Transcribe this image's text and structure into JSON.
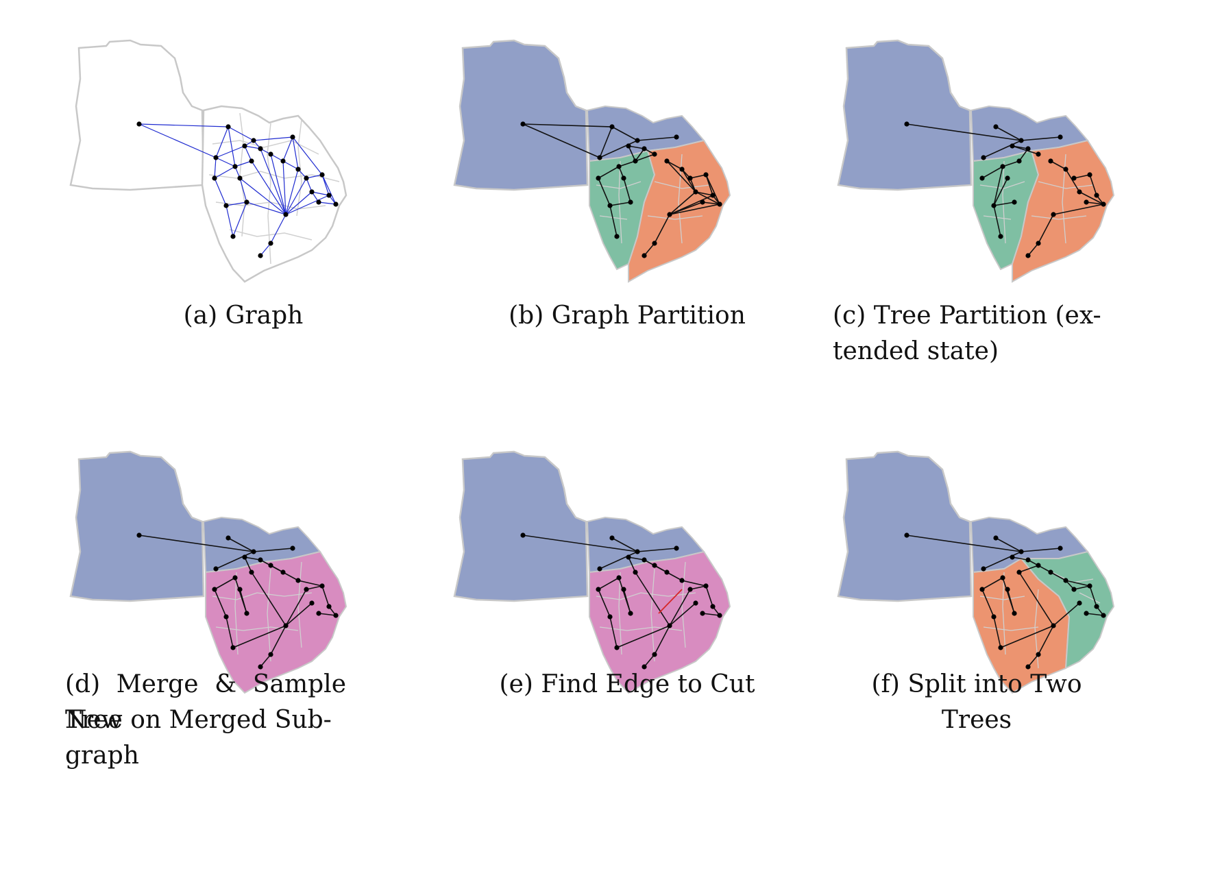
{
  "figure": {
    "panels": [
      {
        "id": "a",
        "caption": "(a) Graph",
        "fills": null,
        "edge_color": "#1f2bd0"
      },
      {
        "id": "b",
        "caption": "(b) Graph Partition",
        "fills": [
          "#919fc7",
          "#7fbfa3",
          "#ec9470"
        ],
        "edge_color": "#111111"
      },
      {
        "id": "c",
        "caption": "(c) Tree Partition (extended state)",
        "caption_line1": "(c) Tree Partition (ex-",
        "caption_line2": "tended state)",
        "fills": [
          "#919fc7",
          "#7fbfa3",
          "#ec9470"
        ],
        "edge_color": "#111111"
      },
      {
        "id": "d",
        "caption": "(d) Merge & Sample New Tree on Merged Subgraph",
        "caption_line1": "(d) Merge & Sample New",
        "caption_line2": "Tree on Merged Sub-",
        "caption_line3": "graph",
        "fills": [
          "#919fc7",
          "#d88cc0"
        ],
        "edge_color": "#111111"
      },
      {
        "id": "e",
        "caption": "(e) Find Edge to Cut",
        "fills": [
          "#919fc7",
          "#d88cc0"
        ],
        "edge_color": "#111111",
        "cut_edge_color": "#d62728"
      },
      {
        "id": "f",
        "caption": "(f) Split into Two Trees",
        "fills": [
          "#919fc7",
          "#ec9470",
          "#7fbfa3"
        ],
        "edge_color": "#111111"
      }
    ],
    "colors": {
      "boundary": "#c8c8c8",
      "node": "#000000",
      "background": "#ffffff"
    }
  }
}
